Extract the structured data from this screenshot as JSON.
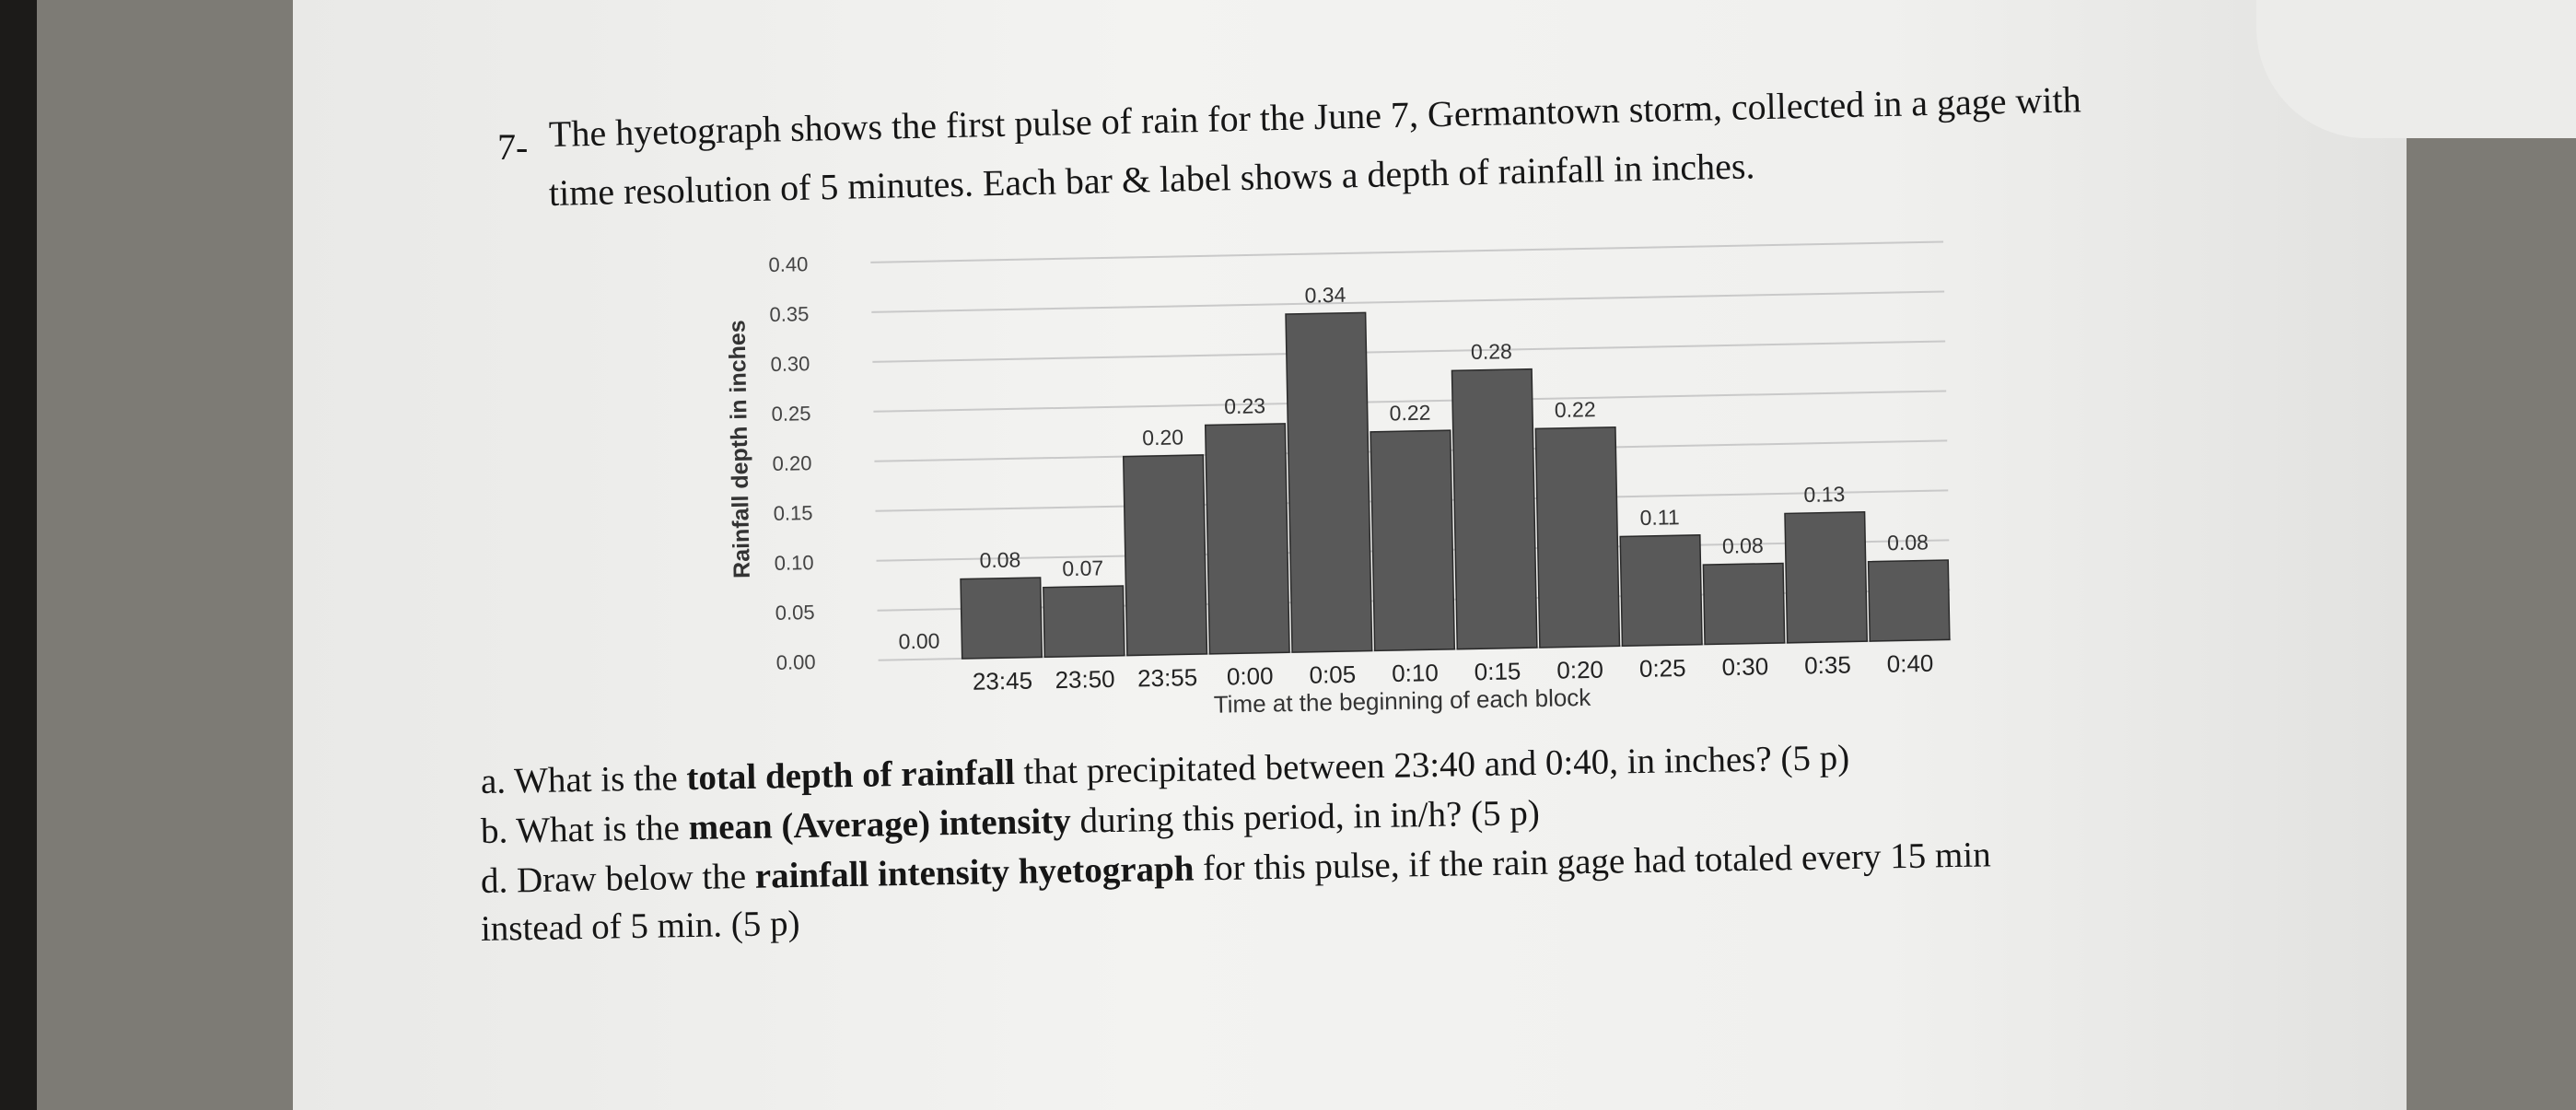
{
  "problem": {
    "number": "7-",
    "prompt_line1": "The hyetograph shows the first pulse of rain for the June 7, Germantown storm, collected in a gage with",
    "prompt_line2": "time resolution of 5 minutes. Each bar & label shows a depth of rainfall in inches."
  },
  "chart_data": {
    "type": "bar",
    "title": "",
    "xlabel": "Time at the beginning of each block",
    "ylabel": "Rainfall depth in inches",
    "ylim": [
      0,
      0.4
    ],
    "yticks": [
      "0.00",
      "0.05",
      "0.10",
      "0.15",
      "0.20",
      "0.25",
      "0.30",
      "0.35",
      "0.40"
    ],
    "categories": [
      "",
      "23:45",
      "23:50",
      "23:55",
      "0:00",
      "0:05",
      "0:10",
      "0:15",
      "0:20",
      "0:25",
      "0:30",
      "0:35",
      "0:40"
    ],
    "values": [
      0.0,
      0.08,
      0.07,
      0.2,
      0.23,
      0.34,
      0.22,
      0.28,
      0.22,
      0.11,
      0.08,
      0.13,
      0.08
    ],
    "data_labels": [
      "0.00",
      "0.08",
      "0.07",
      "0.20",
      "0.23",
      "0.34",
      "0.22",
      "0.28",
      "0.22",
      "0.11",
      "0.08",
      "0.13",
      "0.08"
    ],
    "grid": true,
    "bar_color": "#595959"
  },
  "questions": {
    "a": {
      "prefix": "a. What is the ",
      "bold": "total depth of rainfall",
      "suffix": " that precipitated between 23:40 and 0:40, in inches? (5 p)"
    },
    "b": {
      "prefix": "b. What is the ",
      "bold": "mean (Average) intensity",
      "suffix": " during this period, in in/h? (5 p)"
    },
    "d": {
      "prefix": "d. Draw below the ",
      "bold": "rainfall intensity hyetograph",
      "suffix": " for this pulse, if the rain gage had totaled every 15 min"
    },
    "d_cont": "instead of 5 min. (5 p)"
  }
}
